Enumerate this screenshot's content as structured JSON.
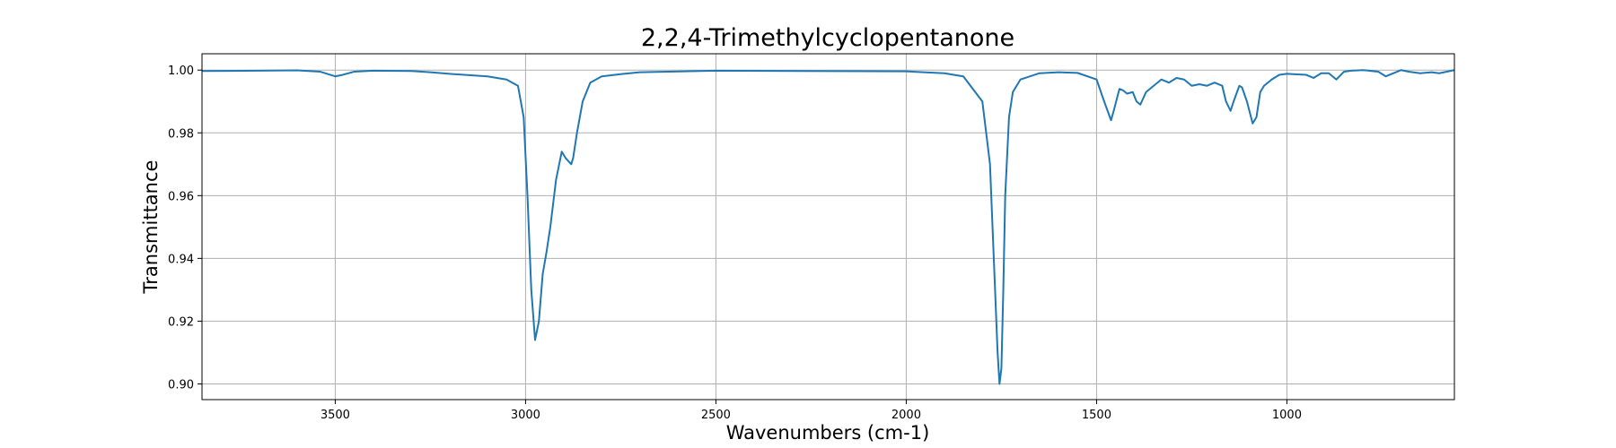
{
  "chart_data": {
    "type": "line",
    "title": "2,2,4-Trimethylcyclopentanone",
    "xlabel": "Wavenumbers (cm-1)",
    "ylabel": "Transmittance",
    "xlim": [
      3850,
      560
    ],
    "ylim": [
      0.895,
      1.0052
    ],
    "x_reversed": true,
    "grid": true,
    "xticks": [
      3500,
      3000,
      2500,
      2000,
      1500,
      1000
    ],
    "xtick_labels": [
      "3500",
      "3000",
      "2500",
      "2000",
      "1500",
      "1000"
    ],
    "yticks": [
      0.9,
      0.92,
      0.94,
      0.96,
      0.98,
      1.0
    ],
    "ytick_labels": [
      "0.90",
      "0.92",
      "0.94",
      "0.96",
      "0.98",
      "1.00"
    ],
    "series": [
      {
        "color": "#1f77b4",
        "x": [
          3850,
          3700,
          3600,
          3540,
          3500,
          3480,
          3450,
          3400,
          3300,
          3250,
          3200,
          3100,
          3050,
          3020,
          3005,
          2995,
          2985,
          2975,
          2965,
          2955,
          2945,
          2935,
          2920,
          2905,
          2895,
          2880,
          2875,
          2865,
          2850,
          2830,
          2800,
          2750,
          2700,
          2500,
          2000,
          1900,
          1850,
          1800,
          1780,
          1770,
          1760,
          1755,
          1750,
          1745,
          1740,
          1730,
          1720,
          1700,
          1650,
          1600,
          1550,
          1500,
          1480,
          1462,
          1455,
          1440,
          1430,
          1420,
          1405,
          1395,
          1385,
          1370,
          1350,
          1330,
          1310,
          1290,
          1270,
          1250,
          1230,
          1210,
          1190,
          1170,
          1160,
          1148,
          1140,
          1125,
          1118,
          1105,
          1090,
          1080,
          1070,
          1060,
          1050,
          1040,
          1020,
          1000,
          950,
          930,
          910,
          890,
          870,
          850,
          830,
          800,
          760,
          740,
          720,
          700,
          680,
          650,
          620,
          600,
          580,
          560
        ],
        "values": [
          0.9997,
          0.9998,
          0.9999,
          0.9995,
          0.998,
          0.9985,
          0.9995,
          0.9998,
          0.9997,
          0.9993,
          0.9988,
          0.998,
          0.997,
          0.995,
          0.985,
          0.96,
          0.93,
          0.914,
          0.92,
          0.935,
          0.942,
          0.95,
          0.965,
          0.974,
          0.972,
          0.97,
          0.972,
          0.98,
          0.99,
          0.996,
          0.998,
          0.9987,
          0.9993,
          0.9998,
          0.9996,
          0.999,
          0.998,
          0.99,
          0.97,
          0.94,
          0.91,
          0.9,
          0.905,
          0.93,
          0.96,
          0.985,
          0.993,
          0.997,
          0.999,
          0.9993,
          0.9991,
          0.997,
          0.99,
          0.984,
          0.987,
          0.994,
          0.9935,
          0.9925,
          0.993,
          0.99,
          0.989,
          0.993,
          0.995,
          0.997,
          0.996,
          0.9975,
          0.997,
          0.995,
          0.9955,
          0.995,
          0.996,
          0.995,
          0.99,
          0.987,
          0.99,
          0.995,
          0.9945,
          0.99,
          0.983,
          0.985,
          0.993,
          0.995,
          0.996,
          0.997,
          0.9985,
          0.9988,
          0.9985,
          0.9975,
          0.999,
          0.999,
          0.997,
          0.9995,
          0.9998,
          1.0,
          0.9995,
          0.998,
          0.999,
          1.0,
          0.9995,
          0.999,
          0.9993,
          0.999,
          0.9995,
          1.0
        ]
      }
    ]
  }
}
